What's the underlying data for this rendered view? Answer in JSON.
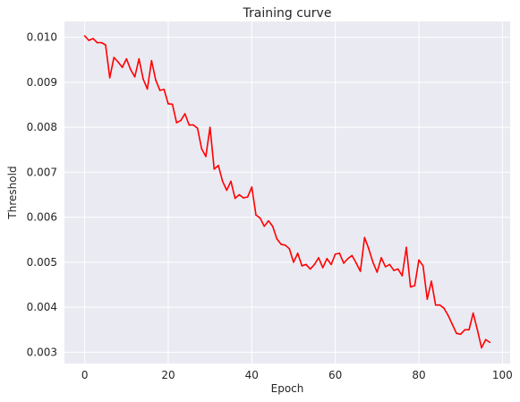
{
  "chart_data": {
    "type": "line",
    "title": "Training curve",
    "xlabel": "Epoch",
    "ylabel": "Threshold",
    "xlim": [
      -4.85,
      101.85
    ],
    "ylim": [
      0.00275,
      0.01035
    ],
    "xticks": [
      0,
      20,
      40,
      60,
      80,
      100
    ],
    "xtick_labels": [
      "0",
      "20",
      "40",
      "60",
      "80",
      "100"
    ],
    "yticks": [
      0.003,
      0.004,
      0.005,
      0.006,
      0.007,
      0.008,
      0.009,
      0.01
    ],
    "ytick_labels": [
      "0.003",
      "0.004",
      "0.005",
      "0.006",
      "0.007",
      "0.008",
      "0.009",
      "0.010"
    ],
    "grid": true,
    "background_color": "#eaeaf2",
    "line_color": "#ff0000",
    "series": [
      {
        "x": [
          0,
          1,
          2,
          3,
          4,
          5,
          6,
          7,
          8,
          9,
          10,
          11,
          12,
          13,
          14,
          15,
          16,
          17,
          18,
          19,
          20,
          21,
          22,
          23,
          24,
          25,
          26,
          27,
          28,
          29,
          30,
          31,
          32,
          33,
          34,
          35,
          36,
          37,
          38,
          39,
          40,
          41,
          42,
          43,
          44,
          45,
          46,
          47,
          48,
          49,
          50,
          51,
          52,
          53,
          54,
          55,
          56,
          57,
          58,
          59,
          60,
          61,
          62,
          63,
          64,
          65,
          66,
          67,
          68,
          69,
          70,
          71,
          72,
          73,
          74,
          75,
          76,
          77,
          78,
          79,
          80,
          81,
          82,
          83,
          84,
          85,
          86,
          87,
          88,
          89,
          90,
          91,
          92,
          93,
          94,
          95,
          96,
          97
        ],
        "values": [
          0.01003,
          0.00993,
          0.00997,
          0.00988,
          0.00988,
          0.00983,
          0.0091,
          0.00955,
          0.00945,
          0.00933,
          0.00952,
          0.00928,
          0.00912,
          0.00952,
          0.00907,
          0.00885,
          0.00948,
          0.00905,
          0.00882,
          0.00884,
          0.00852,
          0.00851,
          0.0081,
          0.00815,
          0.0083,
          0.00805,
          0.00805,
          0.00798,
          0.00752,
          0.00735,
          0.008,
          0.00707,
          0.00715,
          0.0068,
          0.0066,
          0.0068,
          0.00642,
          0.0065,
          0.00643,
          0.00645,
          0.00667,
          0.00605,
          0.00598,
          0.0058,
          0.00592,
          0.0058,
          0.00552,
          0.0054,
          0.00538,
          0.0053,
          0.005,
          0.0052,
          0.00492,
          0.00495,
          0.00485,
          0.00495,
          0.0051,
          0.00488,
          0.00508,
          0.00495,
          0.00518,
          0.0052,
          0.00498,
          0.00508,
          0.00515,
          0.00498,
          0.0048,
          0.00555,
          0.0053,
          0.005,
          0.00478,
          0.0051,
          0.0049,
          0.00495,
          0.00482,
          0.00485,
          0.0047,
          0.00533,
          0.00445,
          0.00448,
          0.00505,
          0.00492,
          0.00418,
          0.00458,
          0.00405,
          0.00405,
          0.00398,
          0.00382,
          0.00362,
          0.00342,
          0.0034,
          0.0035,
          0.0035,
          0.00387,
          0.0035,
          0.0031,
          0.00328,
          0.00322
        ]
      }
    ]
  }
}
